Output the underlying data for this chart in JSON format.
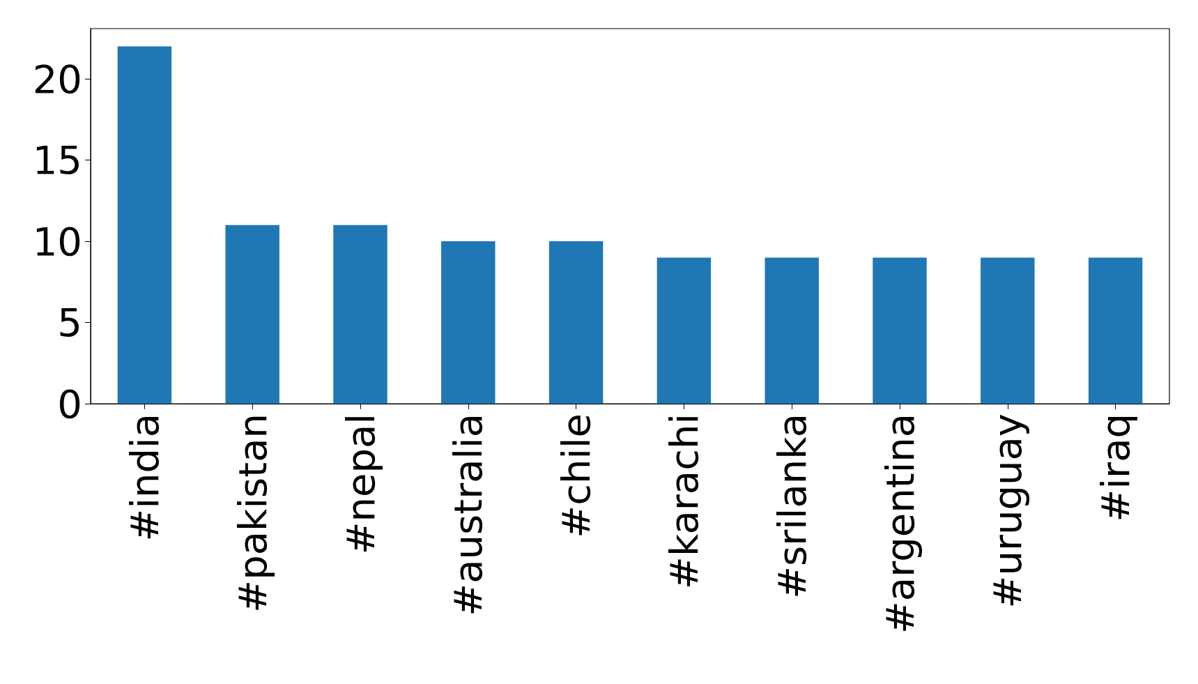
{
  "chart_data": {
    "type": "bar",
    "categories": [
      "#india",
      "#pakistan",
      "#nepal",
      "#australia",
      "#chile",
      "#karachi",
      "#srilanka",
      "#argentina",
      "#uruguay",
      "#iraq"
    ],
    "values": [
      22,
      11,
      11,
      10,
      10,
      9,
      9,
      9,
      9,
      9
    ],
    "color": "#1f77b4",
    "ylim": [
      0,
      23.1
    ],
    "yticks": [
      0,
      5,
      10,
      15,
      20
    ],
    "grid": false
  }
}
